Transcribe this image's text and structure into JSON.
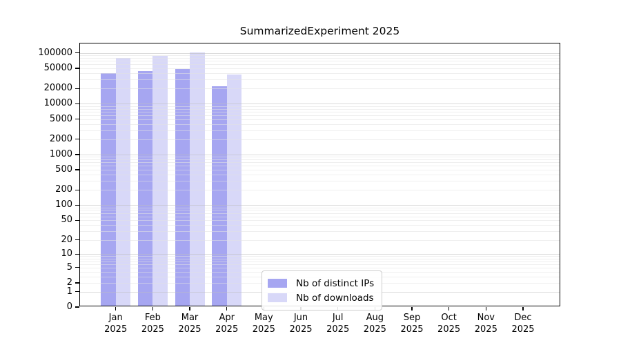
{
  "chart_data": {
    "type": "bar",
    "title": "SummarizedExperiment 2025",
    "categories": [
      "Jan",
      "Feb",
      "Mar",
      "Apr",
      "May",
      "Jun",
      "Jul",
      "Aug",
      "Sep",
      "Oct",
      "Nov",
      "Dec"
    ],
    "year_label": "2025",
    "series": [
      {
        "name": "Nb of distinct IPs",
        "color": "#a6a6f1",
        "values": [
          38000,
          42000,
          45000,
          20800,
          null,
          null,
          null,
          null,
          null,
          null,
          null,
          null
        ]
      },
      {
        "name": "Nb of downloads",
        "color": "#d8d8f8",
        "values": [
          75000,
          83000,
          95000,
          35000,
          null,
          null,
          null,
          null,
          null,
          null,
          null,
          null
        ]
      }
    ],
    "y_ticks": [
      0,
      1,
      2,
      5,
      10,
      20,
      50,
      100,
      200,
      500,
      1000,
      2000,
      5000,
      10000,
      20000,
      50000,
      100000
    ],
    "y_scale": "log1p",
    "ylim": [
      0,
      100000
    ],
    "grid": true,
    "legend_position": "lower center"
  },
  "colors": {
    "axis": "#000000",
    "grid_major": "#c8c8c8",
    "grid_minor": "#e9e9e9",
    "background": "#ffffff"
  }
}
